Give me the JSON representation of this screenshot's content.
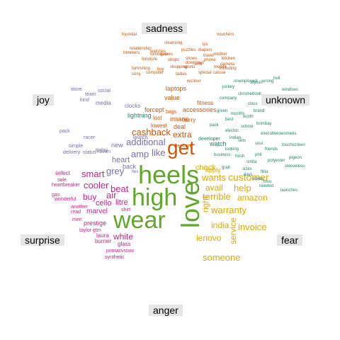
{
  "emotions": {
    "sadness": "sadness",
    "unknown": "unknown",
    "joy": "joy",
    "surprise": "surprise",
    "fear": "fear",
    "anger": "anger"
  },
  "colors": {
    "sadness": "#d35400",
    "unknown": "#1a8a6e",
    "joy": "#7570b3",
    "surprise": "#d0208c",
    "love": "#5fa82a",
    "fear": "#e0a800",
    "anger": "#8b5a2b",
    "label_bg": "#e6e6e6"
  },
  "words": {
    "big": [
      "heels",
      "high",
      "wear",
      "love",
      "get"
    ],
    "fear": [
      "customer",
      "wants",
      "help",
      "avail",
      "terrible",
      "amazon",
      "warranty",
      "india",
      "invoice",
      "lenovo",
      "service",
      "someone",
      "right",
      "check",
      "apply"
    ],
    "surprise": [
      "smart",
      "cooler",
      "buy",
      "beat",
      "air",
      "cello",
      "litre",
      "marvel",
      "white",
      "prestige",
      "laura",
      "burner",
      "glass",
      "synthetic",
      "pomacvstsni",
      "taylor gtm",
      "wonderful",
      "heartbreaker",
      "select",
      "sale",
      "gas",
      "men",
      "shirt",
      "read",
      "another"
    ],
    "joy": [
      "additional",
      "amp",
      "like",
      "grey",
      "heart",
      "cashback",
      "extra",
      "new",
      "back",
      "launch",
      "today",
      "status",
      "haven",
      "delivery",
      "simple",
      "pack",
      "racer",
      "lightning",
      "clocks",
      "team",
      "media",
      "store",
      "social",
      "kind"
    ],
    "sadness": [
      "laptops",
      "value",
      "accessories",
      "fitness",
      "insane",
      "deal",
      "lost",
      "lowest",
      "forcept",
      "bags",
      "hurry",
      "mobile",
      "watches",
      "puzzles",
      "relationship",
      "hyundai",
      "vouchers",
      "phone",
      "mother",
      "kitchen",
      "camera",
      "trimmers",
      "furniture",
      "games",
      "shops",
      "shoes",
      "shopping",
      "sports",
      "furnishing",
      "computer",
      "cleansing",
      "sony",
      "ips",
      "including",
      "casual",
      "diapers",
      "travel",
      "ladies",
      "sofa",
      "buy",
      "freecard",
      "tomorrow",
      "recliner",
      "download",
      "special"
    ],
    "unknown": [
      "watch",
      "developer",
      "unemployed",
      "stylish",
      "hell",
      "windows",
      "wrong",
      "jockey",
      "chromebook",
      "bombay",
      "brand",
      "executives",
      "womens",
      "touchscreen",
      "pigeon",
      "sleeveless",
      "trivo",
      "launches",
      "fillia",
      "polyester",
      "needed",
      "stores",
      "pack",
      "best",
      "grab",
      "fresh",
      "months",
      "green",
      "worth",
      "electric",
      "phil",
      "smita",
      "indian",
      "class",
      "sizes",
      "company",
      "sets",
      "looking",
      "business",
      "school",
      "soul",
      "days",
      "friends",
      "flex"
    ]
  }
}
